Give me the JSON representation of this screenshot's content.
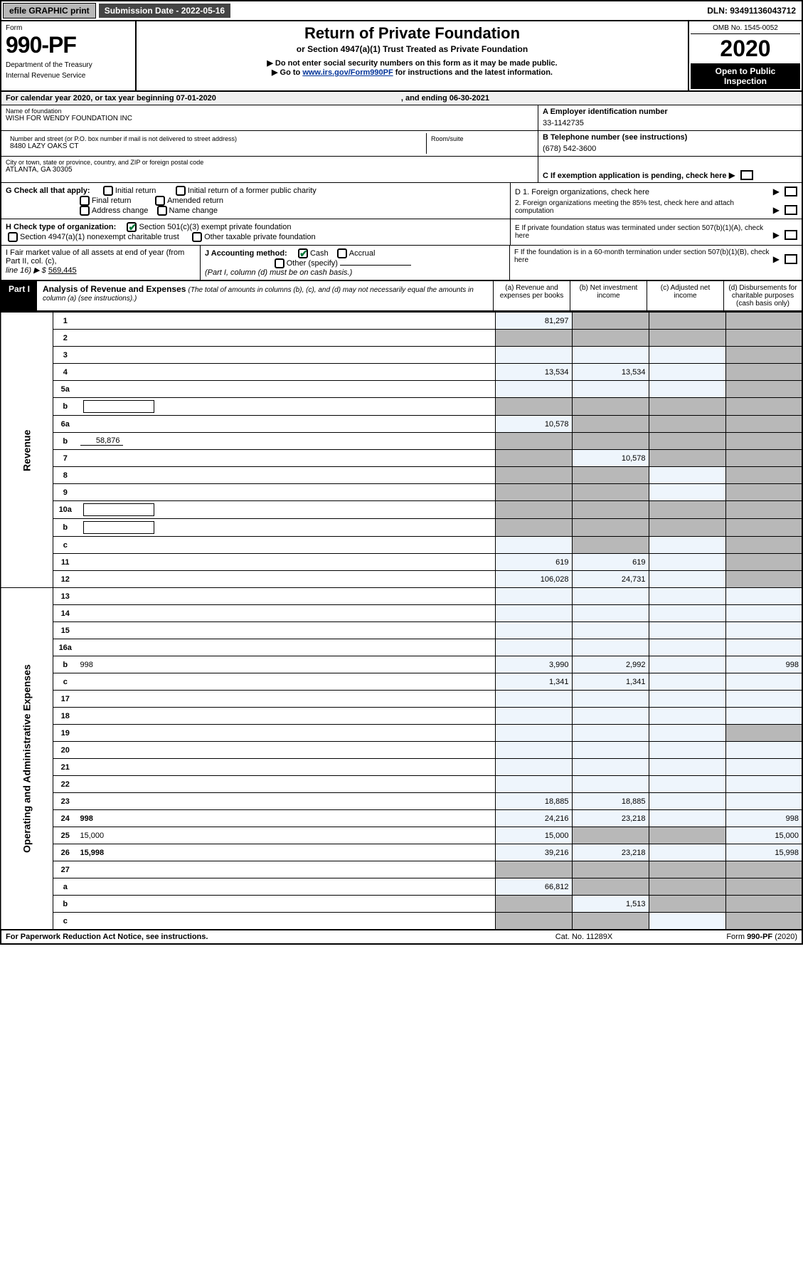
{
  "topbar": {
    "efile": "efile GRAPHIC print",
    "submission": "Submission Date - 2022-05-16",
    "dln": "DLN: 93491136043712"
  },
  "header": {
    "form_label": "Form",
    "form_number": "990-PF",
    "dept": "Department of the Treasury",
    "irs": "Internal Revenue Service",
    "title": "Return of Private Foundation",
    "subtitle": "or Section 4947(a)(1) Trust Treated as Private Foundation",
    "note1": "▶ Do not enter social security numbers on this form as it may be made public.",
    "note2_pre": "▶ Go to ",
    "note2_link": "www.irs.gov/Form990PF",
    "note2_post": " for instructions and the latest information.",
    "omb": "OMB No. 1545-0052",
    "year": "2020",
    "open": "Open to Public Inspection"
  },
  "calyear": {
    "text": "For calendar year 2020, or tax year beginning 07-01-2020",
    "ending": ", and ending 06-30-2021"
  },
  "info": {
    "name_lbl": "Name of foundation",
    "name_val": "WISH FOR WENDY FOUNDATION INC",
    "addr_lbl": "Number and street (or P.O. box number if mail is not delivered to street address)",
    "addr_val": "8480 LAZY OAKS CT",
    "room_lbl": "Room/suite",
    "city_lbl": "City or town, state or province, country, and ZIP or foreign postal code",
    "city_val": "ATLANTA, GA  30305",
    "a_lbl": "A Employer identification number",
    "a_val": "33-1142735",
    "b_lbl": "B Telephone number (see instructions)",
    "b_val": "(678) 542-3600",
    "c_lbl": "C If exemption application is pending, check here",
    "d1_lbl": "D 1. Foreign organizations, check here",
    "d2_lbl": "2. Foreign organizations meeting the 85% test, check here and attach computation",
    "e_lbl": "E If private foundation status was terminated under section 507(b)(1)(A), check here",
    "f_lbl": "F If the foundation is in a 60-month termination under section 507(b)(1)(B), check here",
    "g_lbl": "G Check all that apply:",
    "g_opts": [
      "Initial return",
      "Final return",
      "Address change",
      "Initial return of a former public charity",
      "Amended return",
      "Name change"
    ],
    "h_lbl": "H Check type of organization:",
    "h_opt1": "Section 501(c)(3) exempt private foundation",
    "h_opt2": "Section 4947(a)(1) nonexempt charitable trust",
    "h_opt3": "Other taxable private foundation",
    "i_lbl": "I Fair market value of all assets at end of year (from Part II, col. (c),",
    "i_line": "line 16) ▶ $",
    "i_val": "569,445",
    "j_lbl": "J Accounting method:",
    "j_cash": "Cash",
    "j_accrual": "Accrual",
    "j_other": "Other (specify)",
    "j_note": "(Part I, column (d) must be on cash basis.)"
  },
  "part1": {
    "tag": "Part I",
    "title": "Analysis of Revenue and Expenses",
    "note": "(The total of amounts in columns (b), (c), and (d) may not necessarily equal the amounts in column (a) (see instructions).)",
    "col_a": "(a) Revenue and expenses per books",
    "col_b": "(b) Net investment income",
    "col_c": "(c) Adjusted net income",
    "col_d": "(d) Disbursements for charitable purposes (cash basis only)",
    "side_rev": "Revenue",
    "side_exp": "Operating and Administrative Expenses"
  },
  "rows": [
    {
      "n": "1",
      "d": "",
      "a": "81,297",
      "b": "",
      "c": "",
      "bg": true,
      "cg": true,
      "dg": true
    },
    {
      "n": "2",
      "d": "",
      "a": "",
      "b": "",
      "c": "",
      "ag": true,
      "bg": true,
      "cg": true,
      "dg": true,
      "bold": false
    },
    {
      "n": "3",
      "d": "",
      "a": "",
      "b": "",
      "c": "",
      "dg": true
    },
    {
      "n": "4",
      "d": "",
      "a": "13,534",
      "b": "13,534",
      "c": "",
      "dg": true
    },
    {
      "n": "5a",
      "d": "",
      "a": "",
      "b": "",
      "c": "",
      "dg": true
    },
    {
      "n": "b",
      "d": "",
      "a": "",
      "b": "",
      "c": "",
      "ag": true,
      "bg": true,
      "cg": true,
      "dg": true,
      "inline": true
    },
    {
      "n": "6a",
      "d": "",
      "a": "10,578",
      "b": "",
      "c": "",
      "bg": true,
      "cg": true,
      "dg": true
    },
    {
      "n": "b",
      "d": "",
      "a": "",
      "b": "",
      "c": "",
      "ag": true,
      "bg": true,
      "cg": true,
      "dg": true,
      "inline": true,
      "inlineval": "58,876"
    },
    {
      "n": "7",
      "d": "",
      "a": "",
      "b": "10,578",
      "c": "",
      "ag": true,
      "cg": true,
      "dg": true
    },
    {
      "n": "8",
      "d": "",
      "a": "",
      "b": "",
      "c": "",
      "ag": true,
      "bg": true,
      "dg": true
    },
    {
      "n": "9",
      "d": "",
      "a": "",
      "b": "",
      "c": "",
      "ag": true,
      "bg": true,
      "dg": true
    },
    {
      "n": "10a",
      "d": "",
      "a": "",
      "b": "",
      "c": "",
      "ag": true,
      "bg": true,
      "cg": true,
      "dg": true,
      "inline": true
    },
    {
      "n": "b",
      "d": "",
      "a": "",
      "b": "",
      "c": "",
      "ag": true,
      "bg": true,
      "cg": true,
      "dg": true,
      "inline": true
    },
    {
      "n": "c",
      "d": "",
      "a": "",
      "b": "",
      "c": "",
      "bg": true,
      "dg": true
    },
    {
      "n": "11",
      "d": "",
      "a": "619",
      "b": "619",
      "c": "",
      "dg": true
    },
    {
      "n": "12",
      "d": "",
      "a": "106,028",
      "b": "24,731",
      "c": "",
      "dg": true,
      "bold": true
    }
  ],
  "rows2": [
    {
      "n": "13",
      "d": "",
      "a": "",
      "b": "",
      "c": ""
    },
    {
      "n": "14",
      "d": "",
      "a": "",
      "b": "",
      "c": ""
    },
    {
      "n": "15",
      "d": "",
      "a": "",
      "b": "",
      "c": ""
    },
    {
      "n": "16a",
      "d": "",
      "a": "",
      "b": "",
      "c": ""
    },
    {
      "n": "b",
      "d": "998",
      "a": "3,990",
      "b": "2,992",
      "c": ""
    },
    {
      "n": "c",
      "d": "",
      "a": "1,341",
      "b": "1,341",
      "c": ""
    },
    {
      "n": "17",
      "d": "",
      "a": "",
      "b": "",
      "c": ""
    },
    {
      "n": "18",
      "d": "",
      "a": "",
      "b": "",
      "c": ""
    },
    {
      "n": "19",
      "d": "",
      "a": "",
      "b": "",
      "c": "",
      "dg": true
    },
    {
      "n": "20",
      "d": "",
      "a": "",
      "b": "",
      "c": ""
    },
    {
      "n": "21",
      "d": "",
      "a": "",
      "b": "",
      "c": ""
    },
    {
      "n": "22",
      "d": "",
      "a": "",
      "b": "",
      "c": ""
    },
    {
      "n": "23",
      "d": "",
      "a": "18,885",
      "b": "18,885",
      "c": ""
    },
    {
      "n": "24",
      "d": "998",
      "a": "24,216",
      "b": "23,218",
      "c": "",
      "bold": true
    },
    {
      "n": "25",
      "d": "15,000",
      "a": "15,000",
      "b": "",
      "c": "",
      "bg": true,
      "cg": true
    },
    {
      "n": "26",
      "d": "15,998",
      "a": "39,216",
      "b": "23,218",
      "c": "",
      "bold": true
    },
    {
      "n": "27",
      "d": "",
      "a": "",
      "b": "",
      "c": "",
      "ag": true,
      "bg": true,
      "cg": true,
      "dg": true
    },
    {
      "n": "a",
      "d": "",
      "a": "66,812",
      "b": "",
      "c": "",
      "bold": true,
      "bg": true,
      "cg": true,
      "dg": true
    },
    {
      "n": "b",
      "d": "",
      "a": "",
      "b": "1,513",
      "c": "",
      "bold": true,
      "ag": true,
      "cg": true,
      "dg": true
    },
    {
      "n": "c",
      "d": "",
      "a": "",
      "b": "",
      "c": "",
      "bold": true,
      "ag": true,
      "bg": true,
      "dg": true
    }
  ],
  "footer": {
    "left": "For Paperwork Reduction Act Notice, see instructions.",
    "center": "Cat. No. 11289X",
    "right": "Form 990-PF (2020)"
  }
}
